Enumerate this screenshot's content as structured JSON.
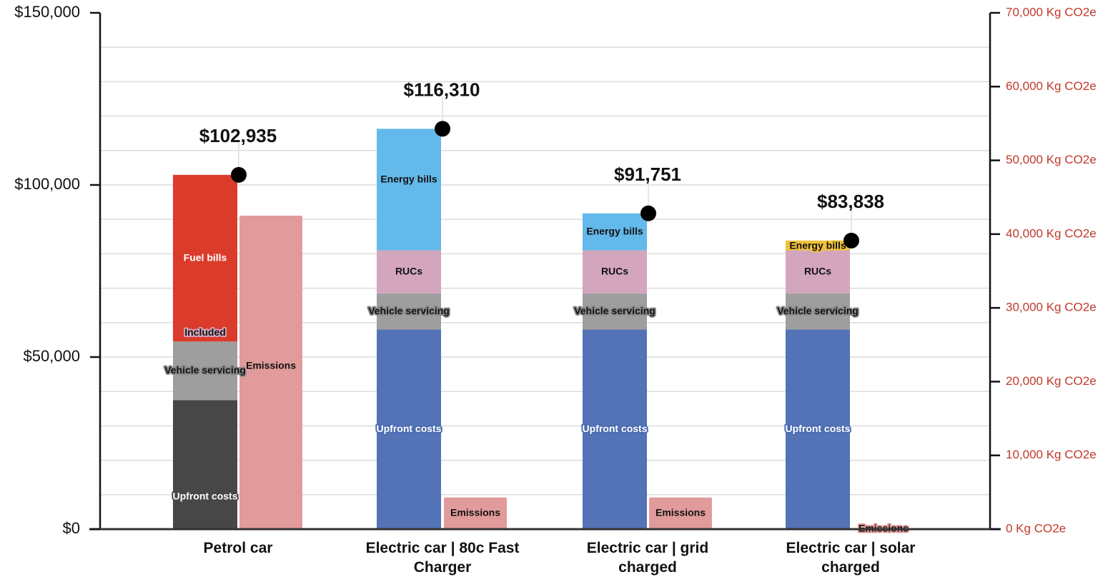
{
  "chart_data": {
    "type": "bar",
    "stacked": true,
    "title": "",
    "categories": [
      "Petrol car",
      "Electric car | 80c Fast Charger",
      "Electric car | grid charged",
      "Electric car | solar charged"
    ],
    "category_lines": [
      [
        "Petrol car"
      ],
      [
        "Electric car | 80c Fast",
        "Charger"
      ],
      [
        "Electric car | grid",
        "charged"
      ],
      [
        "Electric car | solar",
        "charged"
      ]
    ],
    "y_left": {
      "ylim": [
        0,
        150000
      ],
      "ticks": [
        0,
        50000,
        100000,
        150000
      ],
      "tick_labels": [
        "$0",
        "$50,000",
        "$100,000",
        "$150,000"
      ]
    },
    "y_right": {
      "ylim": [
        0,
        70000
      ],
      "ticks": [
        0,
        10000,
        20000,
        30000,
        40000,
        50000,
        60000,
        70000
      ],
      "tick_labels": [
        "0 Kg CO2e",
        "10,000 Kg CO2e",
        "20,000 Kg CO2e",
        "30,000 Kg CO2e",
        "40,000 Kg CO2e",
        "50,000 Kg CO2e",
        "60,000 Kg CO2e",
        "70,000 Kg CO2e"
      ],
      "color": "#c0392b"
    },
    "grid": true,
    "stacks": [
      {
        "category": "Petrol car",
        "segments": [
          {
            "label": "Upfront costs",
            "value": 37500,
            "color": "#474747"
          },
          {
            "label": "Vehicle servicing",
            "value": 17000,
            "color": "#9e9e9e"
          },
          {
            "label": "Included",
            "value": 0,
            "color": "#d4a6bd"
          },
          {
            "label": "Fuel bills",
            "value": 48435,
            "color": "#db3b2b"
          }
        ],
        "total": 102935,
        "total_label": "$102,935"
      },
      {
        "category": "Electric car | 80c Fast Charger",
        "segments": [
          {
            "label": "Upfront costs",
            "value": 58000,
            "color": "#5373b6"
          },
          {
            "label": "Vehicle servicing",
            "value": 10500,
            "color": "#9e9e9e"
          },
          {
            "label": "RUCs",
            "value": 12500,
            "color": "#d4a6bd"
          },
          {
            "label": "Energy bills",
            "value": 35310,
            "color": "#63b9e9"
          }
        ],
        "total": 116310,
        "total_label": "$116,310"
      },
      {
        "category": "Electric car | grid charged",
        "segments": [
          {
            "label": "Upfront costs",
            "value": 58000,
            "color": "#5373b6"
          },
          {
            "label": "Vehicle servicing",
            "value": 10500,
            "color": "#9e9e9e"
          },
          {
            "label": "RUCs",
            "value": 12500,
            "color": "#d4a6bd"
          },
          {
            "label": "Energy bills",
            "value": 10751,
            "color": "#63b9e9"
          }
        ],
        "total": 91751,
        "total_label": "$91,751"
      },
      {
        "category": "Electric car | solar charged",
        "segments": [
          {
            "label": "Upfront costs",
            "value": 58000,
            "color": "#5373b6"
          },
          {
            "label": "Vehicle servicing",
            "value": 10500,
            "color": "#9e9e9e"
          },
          {
            "label": "RUCs",
            "value": 12500,
            "color": "#d4a6bd"
          },
          {
            "label": "Energy bills",
            "value": 2838,
            "color": "#f0c23b"
          }
        ],
        "total": 83838,
        "total_label": "$83,838"
      }
    ],
    "emissions": {
      "label": "Emissions",
      "axis": "right",
      "color": "#e19b9a",
      "values": [
        42500,
        4300,
        4300,
        0
      ]
    }
  }
}
